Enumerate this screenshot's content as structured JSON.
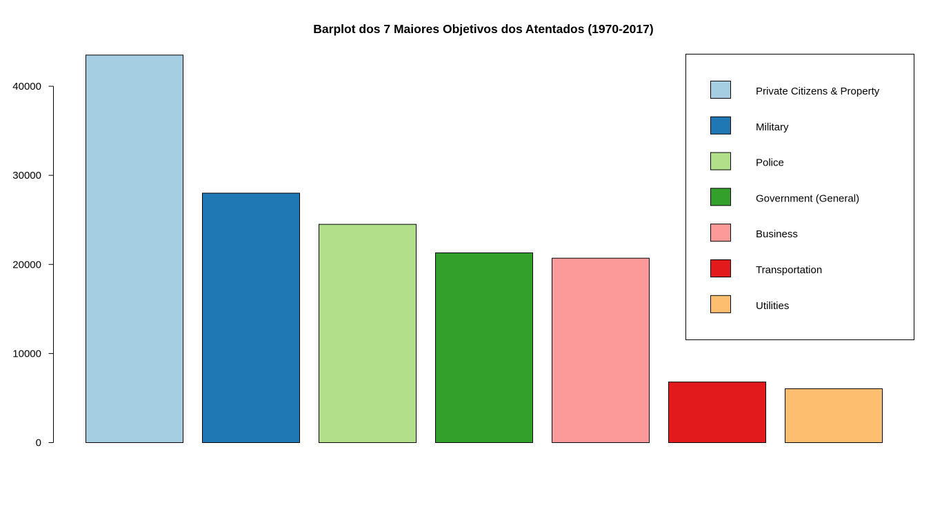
{
  "chart_data": {
    "type": "bar",
    "title": "Barplot dos 7 Maiores Objetivos dos Atentados (1970-2017)",
    "xlabel": "",
    "ylabel": "",
    "ylim": [
      0,
      43500
    ],
    "y_ticks": [
      0,
      10000,
      20000,
      30000,
      40000
    ],
    "y_tick_labels": [
      "0",
      "10000",
      "20000",
      "30000",
      "40000"
    ],
    "categories": [
      "Private Citizens & Property",
      "Military",
      "Police",
      "Government (General)",
      "Business",
      "Transportation",
      "Utilities"
    ],
    "values": [
      43500,
      28000,
      24500,
      21300,
      20700,
      6800,
      6050
    ],
    "colors": [
      "#a6cee3",
      "#1f78b4",
      "#b2df8a",
      "#33a02c",
      "#fb9a99",
      "#e31a1c",
      "#fdbf6f"
    ],
    "grid": false,
    "legend": {
      "position": "top-right",
      "entries": [
        "Private Citizens & Property",
        "Military",
        "Police",
        "Government (General)",
        "Business",
        "Transportation",
        "Utilities"
      ]
    }
  }
}
